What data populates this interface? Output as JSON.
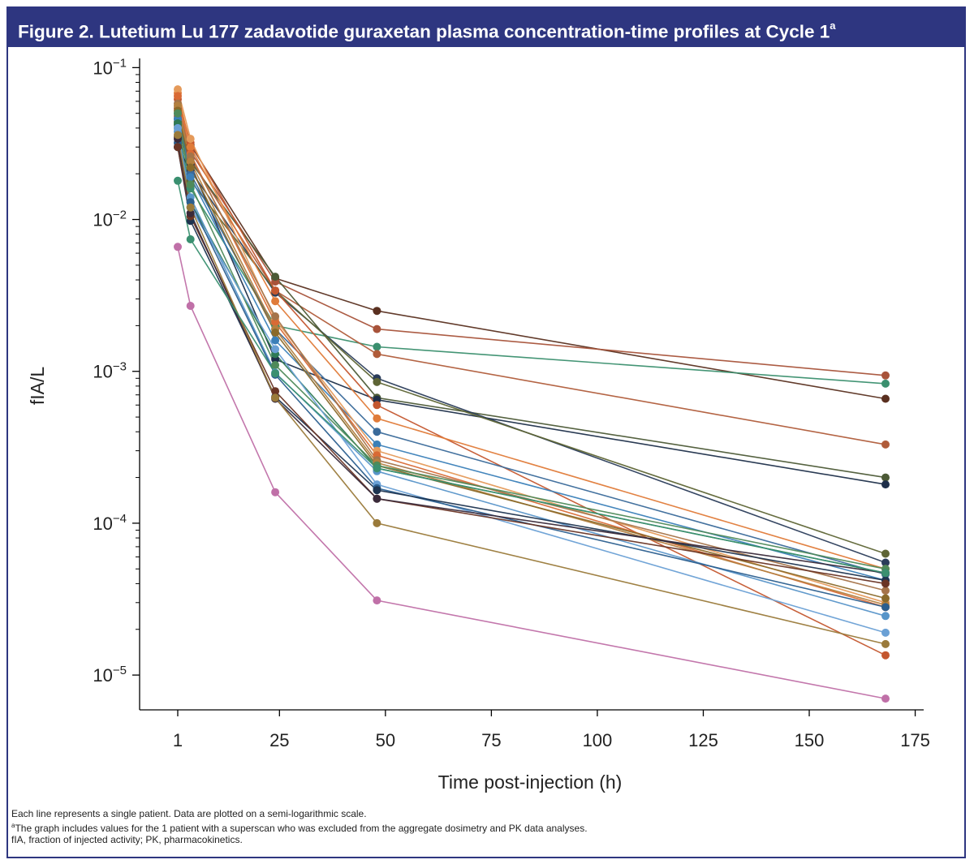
{
  "figure": {
    "title": "Figure 2. Lutetium Lu 177 zadavotide guraxetan plasma concentration-time profiles at Cycle 1",
    "title_superscript": "a"
  },
  "footnotes": {
    "line1": "Each line represents a single patient. Data are plotted on a semi-logarithmic scale.",
    "line2_marker": "a",
    "line2": "The graph includes values for the 1 patient with a superscan who was excluded from the aggregate dosimetry and PK data analyses.",
    "line3": "fIA, fraction of injected activity; PK, pharmacokinetics."
  },
  "colors": {
    "frame": "#2e3680",
    "title_text": "#ffffff"
  },
  "chart_data": {
    "type": "line",
    "xlabel": "Time post-injection (h)",
    "ylabel": "fIA/L",
    "x_scale": "linear",
    "y_scale": "log",
    "xlim": [
      -8,
      177
    ],
    "ylim": [
      5.9e-06,
      0.115
    ],
    "x_ticks": [
      1,
      25,
      50,
      75,
      100,
      125,
      150,
      175
    ],
    "y_ticks": [
      {
        "value": 0.1,
        "label": "10",
        "exp": "−1"
      },
      {
        "value": 0.01,
        "label": "10",
        "exp": "−2"
      },
      {
        "value": 0.001,
        "label": "10",
        "exp": "−3"
      },
      {
        "value": 0.0001,
        "label": "10",
        "exp": "−4"
      },
      {
        "value": 1e-05,
        "label": "10",
        "exp": "−5"
      }
    ],
    "grid": false,
    "legend": "none",
    "x": [
      1,
      4,
      24,
      48,
      168
    ],
    "series": [
      {
        "color": "#5a3020",
        "values": [
          0.035,
          0.031,
          0.0041,
          0.0025,
          0.00066
        ]
      },
      {
        "color": "#a8533a",
        "values": [
          0.054,
          0.028,
          0.0039,
          0.0019,
          0.00094
        ]
      },
      {
        "color": "#3a8f6e",
        "values": [
          0.04,
          0.016,
          0.002,
          0.00145,
          0.00083
        ]
      },
      {
        "color": "#b05c3a",
        "values": [
          0.048,
          0.025,
          0.0034,
          0.0013,
          0.00033
        ]
      },
      {
        "color": "#4c5a36",
        "values": [
          0.042,
          0.024,
          0.0042,
          0.00067,
          0.0002
        ]
      },
      {
        "color": "#1e2f4a",
        "values": [
          0.046,
          0.023,
          0.0012,
          0.00065,
          0.00018
        ]
      },
      {
        "color": "#2a3c5a",
        "values": [
          0.03,
          0.021,
          0.0033,
          0.0009,
          5.5e-05
        ]
      },
      {
        "color": "#5e6535",
        "values": [
          0.044,
          0.018,
          0.0034,
          0.00085,
          6.3e-05
        ]
      },
      {
        "color": "#c4572f",
        "values": [
          0.062,
          0.032,
          0.0034,
          0.0006,
          1.35e-05
        ]
      },
      {
        "color": "#e07b39",
        "values": [
          0.068,
          0.03,
          0.0029,
          0.00049,
          5e-05
        ]
      },
      {
        "color": "#3a6a9a",
        "values": [
          0.05,
          0.02,
          0.0019,
          0.0004,
          4.6e-05
        ]
      },
      {
        "color": "#3a7fb8",
        "values": [
          0.046,
          0.019,
          0.0016,
          0.00033,
          4.2e-05
        ]
      },
      {
        "color": "#e59a5a",
        "values": [
          0.072,
          0.034,
          0.0022,
          0.0003,
          3e-05
        ]
      },
      {
        "color": "#d96a35",
        "values": [
          0.065,
          0.027,
          0.0021,
          0.00028,
          2.8e-05
        ]
      },
      {
        "color": "#a5744a",
        "values": [
          0.058,
          0.026,
          0.0023,
          0.00026,
          3.6e-05
        ]
      },
      {
        "color": "#b3803f",
        "values": [
          0.056,
          0.024,
          0.0019,
          0.00025,
          2.9e-05
        ]
      },
      {
        "color": "#8a6a2a",
        "values": [
          0.052,
          0.022,
          0.0018,
          0.00024,
          3.2e-05
        ]
      },
      {
        "color": "#2e7a55",
        "values": [
          0.043,
          0.013,
          0.0013,
          0.00023,
          4.7e-05
        ]
      },
      {
        "color": "#4f8a5a",
        "values": [
          0.05,
          0.017,
          0.0011,
          0.00024,
          5e-05
        ]
      },
      {
        "color": "#5895c9",
        "values": [
          0.038,
          0.014,
          0.00098,
          0.00022,
          2.45e-05
        ]
      },
      {
        "color": "#6aa0d5",
        "values": [
          0.04,
          0.012,
          0.0014,
          0.00018,
          1.9e-05
        ]
      },
      {
        "color": "#2b5f8f",
        "values": [
          0.032,
          0.013,
          0.00095,
          0.00017,
          2.8e-05
        ]
      },
      {
        "color": "#1e3450",
        "values": [
          0.03,
          0.0098,
          0.00068,
          0.000165,
          4.2e-05
        ]
      },
      {
        "color": "#6a3525",
        "values": [
          0.03,
          0.0105,
          0.00074,
          0.000145,
          4e-05
        ]
      },
      {
        "color": "#3a2a3a",
        "values": [
          0.034,
          0.011,
          0.00066,
          0.000145,
          4.7e-05
        ]
      },
      {
        "color": "#9a7a3a",
        "values": [
          0.036,
          0.012,
          0.00067,
          0.0001,
          1.6e-05
        ]
      },
      {
        "color": "#3a9070",
        "values": [
          0.018,
          0.0074,
          0.00097,
          0.00023,
          4.7e-05
        ]
      },
      {
        "color": "#c070a8",
        "values": [
          0.0066,
          0.0027,
          0.00016,
          3.1e-05,
          7e-06
        ]
      }
    ]
  }
}
